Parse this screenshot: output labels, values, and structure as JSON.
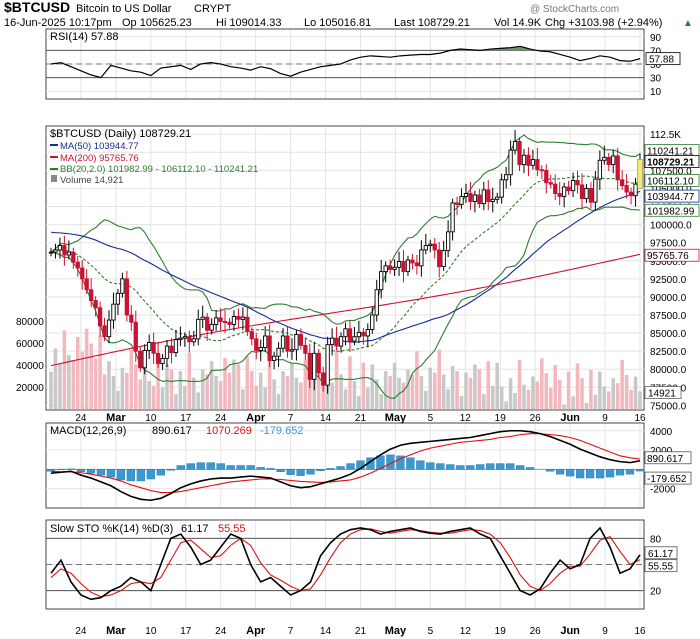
{
  "header": {
    "symbol": "$BTCUSD",
    "name": "Bitcoin to US Dollar",
    "exchange": "CRYPT",
    "date": "16-Jun-2025 10:17pm",
    "op": "Op 105625.23",
    "hi": "Hi 109014.33",
    "lo": "Lo 105016.81",
    "last": "Last 108729.21",
    "vol": "Vol 14.9K",
    "chg": "Chg +3103.98 (+2.94%)",
    "chg_arrow": "▲",
    "watermark": "@ StockCharts.com"
  },
  "colors": {
    "up": "#000000",
    "down": "#cc1133",
    "ma50": "#1a2a9a",
    "ma200": "#cc1133",
    "bb": "#2e7d2e",
    "volume": "#f2b8be",
    "volume_up": "#c8c8c8",
    "macd_hist": "#3a9ad0",
    "signal": "#e01010",
    "sto_d": "#e01010",
    "last_box": "#f3e96b"
  },
  "chart_data": [
    {
      "type": "line",
      "panel": "RSI",
      "title": "RSI(14) 57.88",
      "current_label": "57.88",
      "y_ticks": [
        "90",
        "70",
        "50",
        "30",
        "10"
      ],
      "ylim": [
        0,
        100
      ],
      "levels": [
        70,
        30
      ],
      "dates": [
        "2025-02-18",
        "2025-02-20",
        "2025-02-22",
        "2025-02-24",
        "2025-02-26",
        "2025-02-28",
        "2025-03-02",
        "2025-03-04",
        "2025-03-06",
        "2025-03-08",
        "2025-03-10",
        "2025-03-12",
        "2025-03-14",
        "2025-03-16",
        "2025-03-18",
        "2025-03-20",
        "2025-03-22",
        "2025-03-24",
        "2025-03-26",
        "2025-03-28",
        "2025-03-30",
        "2025-04-01",
        "2025-04-03",
        "2025-04-05",
        "2025-04-07",
        "2025-04-09",
        "2025-04-11",
        "2025-04-13",
        "2025-04-15",
        "2025-04-17",
        "2025-04-19",
        "2025-04-21",
        "2025-04-23",
        "2025-04-25",
        "2025-04-27",
        "2025-04-29",
        "2025-05-01",
        "2025-05-03",
        "2025-05-05",
        "2025-05-07",
        "2025-05-09",
        "2025-05-11",
        "2025-05-13",
        "2025-05-15",
        "2025-05-17",
        "2025-05-19",
        "2025-05-21",
        "2025-05-23",
        "2025-05-25",
        "2025-05-27",
        "2025-05-29",
        "2025-05-31",
        "2025-06-02",
        "2025-06-04",
        "2025-06-06",
        "2025-06-08",
        "2025-06-10",
        "2025-06-12",
        "2025-06-14",
        "2025-06-16"
      ],
      "values": [
        50,
        52,
        46,
        40,
        34,
        30,
        48,
        44,
        40,
        38,
        33,
        44,
        46,
        48,
        42,
        50,
        52,
        50,
        46,
        44,
        41,
        46,
        43,
        36,
        32,
        38,
        42,
        46,
        48,
        50,
        56,
        60,
        62,
        61,
        60,
        62,
        63,
        64,
        64,
        66,
        70,
        72,
        71,
        70,
        72,
        73,
        74,
        76,
        72,
        69,
        68,
        64,
        60,
        55,
        58,
        62,
        60,
        55,
        54,
        57.88
      ]
    },
    {
      "type": "line",
      "panel": "price",
      "title": "$BTCUSD (Daily) 108729.21",
      "legend": [
        {
          "name": "MA(50) 103944.77",
          "color": "#1a2a9a"
        },
        {
          "name": "MA(200) 95765.76",
          "color": "#cc1133"
        },
        {
          "name": "BB(20,2.0) 101982.99 - 106112.10 - 110241.21",
          "color": "#2e7d2e"
        },
        {
          "name": "Volume 14,921",
          "color": "#888888"
        }
      ],
      "y_ticks": [
        "112.5K",
        "110000.0",
        "107500.0",
        "105000.0",
        "102500.0",
        "100000.0",
        "97500.0",
        "95000.0",
        "92500.0",
        "90000.0",
        "87500.0",
        "85000.0",
        "82500.0",
        "80000.0",
        "77500.0",
        "75000.0"
      ],
      "ylim": [
        74500,
        113500
      ],
      "right_labels": [
        "110241.21",
        "108729.21",
        "106112.10",
        "103944.77",
        "101982.99",
        "95765.76",
        "14921"
      ],
      "x_ticks": [
        "24",
        "Mar",
        "10",
        "17",
        "24",
        "Apr",
        "7",
        "14",
        "21",
        "May",
        "5",
        "12",
        "19",
        "26",
        "Jun",
        "9",
        "16"
      ],
      "x_tick_dates": [
        "2025-02-24",
        "2025-03-03",
        "2025-03-10",
        "2025-03-17",
        "2025-03-24",
        "2025-03-31",
        "2025-04-07",
        "2025-04-14",
        "2025-04-21",
        "2025-04-28",
        "2025-05-05",
        "2025-05-12",
        "2025-05-19",
        "2025-05-26",
        "2025-06-02",
        "2025-06-09",
        "2025-06-16"
      ],
      "volume_ticks": [
        "80000",
        "60000",
        "40000",
        "20000"
      ],
      "volume_ylim": [
        0,
        100000
      ],
      "close_start": 96200,
      "closes": [
        96200,
        96500,
        97100,
        95800,
        96200,
        94800,
        94000,
        92500,
        91000,
        89500,
        88500,
        86000,
        84500,
        86800,
        89000,
        90500,
        92500,
        87500,
        86500,
        82500,
        80200,
        82600,
        83700,
        82200,
        80800,
        81500,
        83200,
        82300,
        84100,
        84300,
        84500,
        83800,
        84200,
        86900,
        87200,
        85400,
        86200,
        87100,
        86600,
        86500,
        86200,
        87300,
        86900,
        87200,
        85200,
        84200,
        82600,
        83000,
        84600,
        81200,
        81800,
        82900,
        84600,
        82500,
        82700,
        84800,
        83300,
        82200,
        78600,
        82200,
        79500,
        77800,
        83400,
        84300,
        83200,
        84500,
        85600,
        83900,
        84500,
        85100,
        84600,
        85500,
        87500,
        91000,
        93500,
        94300,
        93800,
        94100,
        94900,
        93500,
        95100,
        94700,
        94300,
        96500,
        97100,
        97300,
        96500,
        94200,
        96400,
        99000,
        103000,
        102800,
        103900,
        104300,
        103200,
        104100,
        102900,
        104800,
        103200,
        103500,
        103800,
        106200,
        106900,
        110300,
        111500,
        108300,
        109600,
        108200,
        109000,
        107600,
        107500,
        105800,
        105600,
        104300,
        103900,
        105200,
        104700,
        106100,
        105500,
        103600,
        105000,
        103100,
        106300,
        108900,
        109300,
        108300,
        109500,
        106200,
        105400,
        104500,
        104000,
        105600,
        108729
      ]
    },
    {
      "type": "line",
      "panel": "MACD",
      "title": "MACD(12,26,9)",
      "values_label": "890.617",
      "signal_label": "1070.269",
      "hist_label": "-179.652",
      "y_ticks": [
        "4000",
        "2000",
        "-2000"
      ],
      "ylim": [
        -3900,
        4700
      ],
      "right_labels": [
        "890.617",
        "-179.652"
      ],
      "macd": [
        -400,
        -300,
        -200,
        -600,
        -900,
        -1300,
        -1700,
        -2300,
        -2800,
        -3100,
        -3200,
        -3000,
        -2500,
        -1900,
        -1500,
        -1200,
        -1000,
        -900,
        -900,
        -800,
        -700,
        -800,
        -900,
        -1300,
        -1700,
        -1900,
        -1800,
        -1500,
        -1200,
        -900,
        -500,
        100,
        800,
        1500,
        2100,
        2500,
        2700,
        2800,
        2900,
        3000,
        3100,
        3200,
        3300,
        3500,
        3700,
        3900,
        4000,
        4000,
        3900,
        3700,
        3400,
        3000,
        2600,
        2100,
        1700,
        1300,
        1000,
        800,
        700,
        890.617
      ],
      "signal": [
        -200,
        -250,
        -250,
        -350,
        -500,
        -700,
        -900,
        -1200,
        -1600,
        -1900,
        -2200,
        -2400,
        -2400,
        -2300,
        -2100,
        -1900,
        -1700,
        -1500,
        -1300,
        -1200,
        -1100,
        -1000,
        -1000,
        -1050,
        -1150,
        -1250,
        -1300,
        -1350,
        -1300,
        -1200,
        -1100,
        -800,
        -400,
        100,
        600,
        1100,
        1500,
        1900,
        2200,
        2400,
        2600,
        2800,
        2900,
        3000,
        3100,
        3300,
        3400,
        3600,
        3700,
        3700,
        3600,
        3500,
        3300,
        3000,
        2600,
        2200,
        1800,
        1400,
        1200,
        1070.269
      ],
      "histogram": [
        -200,
        -50,
        50,
        -250,
        -400,
        -600,
        -800,
        -1100,
        -1200,
        -1200,
        -1000,
        -600,
        -100,
        400,
        600,
        700,
        700,
        600,
        400,
        400,
        400,
        200,
        100,
        -250,
        -550,
        -650,
        -500,
        -150,
        100,
        300,
        600,
        900,
        1200,
        1400,
        1500,
        1400,
        1200,
        900,
        700,
        600,
        500,
        400,
        400,
        500,
        600,
        600,
        600,
        400,
        200,
        0,
        -200,
        -500,
        -700,
        -900,
        -900,
        -900,
        -800,
        -600,
        -500,
        -179.652
      ]
    },
    {
      "type": "line",
      "panel": "STO",
      "title": "Slow STO %K(14) %D(3)",
      "k_label": "61.17",
      "d_label": "55.55",
      "y_ticks": [
        "80",
        "50",
        "20"
      ],
      "ylim": [
        0,
        100
      ],
      "levels": [
        80,
        20
      ],
      "right_labels": [
        "61.17",
        "55.55"
      ],
      "k": [
        40,
        55,
        30,
        15,
        10,
        12,
        20,
        25,
        35,
        30,
        20,
        50,
        80,
        85,
        70,
        50,
        55,
        70,
        85,
        80,
        50,
        30,
        35,
        25,
        15,
        20,
        30,
        60,
        75,
        85,
        90,
        92,
        90,
        85,
        88,
        90,
        92,
        88,
        86,
        85,
        88,
        90,
        92,
        85,
        80,
        60,
        40,
        20,
        15,
        22,
        40,
        55,
        45,
        50,
        80,
        92,
        70,
        40,
        45,
        61.17
      ],
      "d": [
        35,
        45,
        40,
        28,
        18,
        13,
        15,
        20,
        28,
        30,
        28,
        35,
        55,
        75,
        78,
        68,
        58,
        60,
        72,
        80,
        72,
        52,
        38,
        32,
        25,
        20,
        22,
        38,
        58,
        75,
        85,
        90,
        91,
        88,
        86,
        88,
        90,
        89,
        87,
        86,
        86,
        88,
        90,
        89,
        85,
        75,
        58,
        38,
        25,
        20,
        28,
        40,
        48,
        48,
        62,
        78,
        82,
        65,
        50,
        55.55
      ]
    }
  ]
}
